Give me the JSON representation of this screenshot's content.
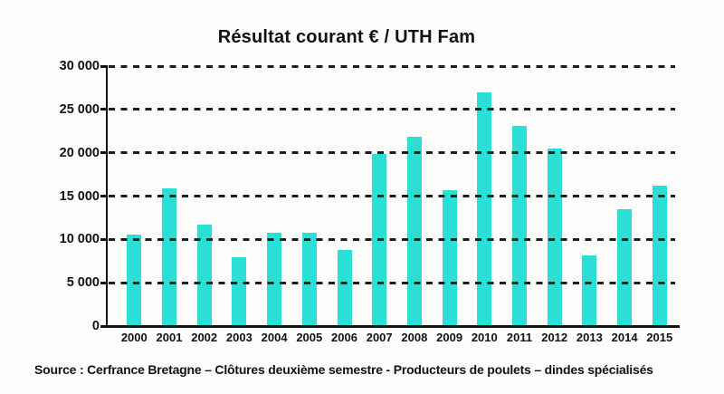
{
  "title": "Résultat courant € / UTH Fam",
  "source": "Source : Cerfrance Bretagne – Clôtures deuxième semestre - Producteurs de poulets – dindes spécialisés",
  "chart_data": {
    "type": "bar",
    "title": "Résultat courant € / UTH Fam",
    "categories": [
      "2000",
      "2001",
      "2002",
      "2003",
      "2004",
      "2005",
      "2006",
      "2007",
      "2008",
      "2009",
      "2010",
      "2011",
      "2012",
      "2013",
      "2014",
      "2015"
    ],
    "values": [
      10600,
      15900,
      11700,
      7900,
      10800,
      10800,
      8800,
      19900,
      21800,
      15700,
      27000,
      23100,
      20500,
      8200,
      13500,
      16200
    ],
    "xlabel": "",
    "ylabel": "",
    "ylim": [
      0,
      30000
    ],
    "yticks": [
      0,
      5000,
      10000,
      15000,
      20000,
      25000,
      30000
    ],
    "ytick_labels": [
      "0",
      "5 000",
      "10 000",
      "15 000",
      "20 000",
      "25 000",
      "30 000"
    ],
    "bar_color": "#2BDFD6",
    "grid": "horizontal-dashed",
    "legend": "none",
    "source_note": "Source : Cerfrance Bretagne – Clôtures deuxième semestre - Producteurs de poulets – dindes spécialisés"
  }
}
